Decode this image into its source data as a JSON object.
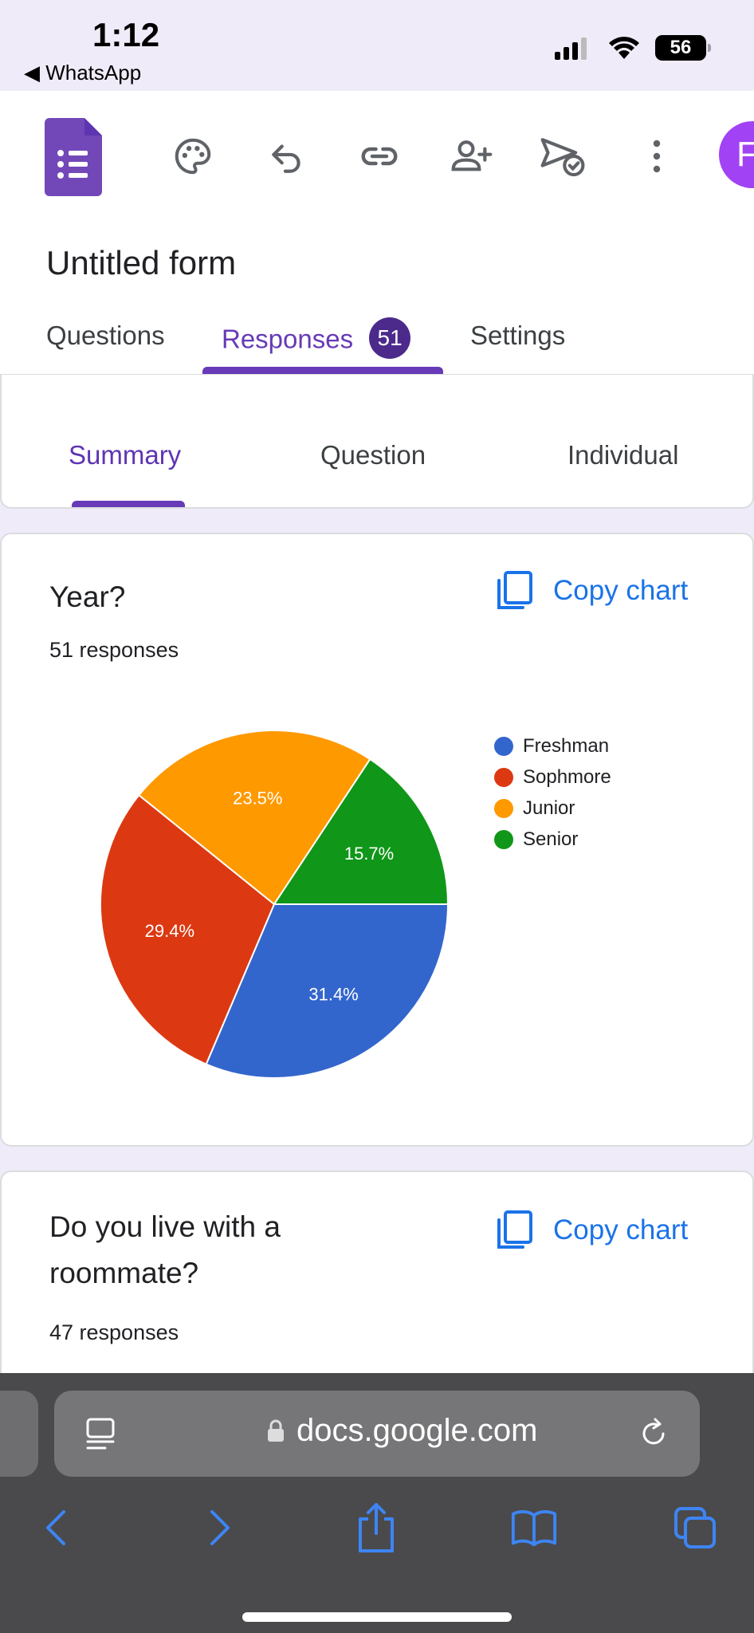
{
  "status_bar": {
    "time": "1:12",
    "back_app": "◀ WhatsApp",
    "battery": "56"
  },
  "header": {
    "app_icon": "google-forms-icon",
    "toolbar": [
      "palette-icon",
      "undo-icon",
      "link-icon",
      "add-collaborator-icon",
      "send-icon",
      "more-vert-icon"
    ],
    "avatar_initial": "F",
    "form_title": "Untitled form",
    "tabs": [
      {
        "label": "Questions"
      },
      {
        "label": "Responses",
        "badge": "51"
      },
      {
        "label": "Settings"
      }
    ]
  },
  "subtabs": [
    "Summary",
    "Question",
    "Individual"
  ],
  "questions": [
    {
      "title": "Year?",
      "responses": "51 responses",
      "copy_label": "Copy chart"
    },
    {
      "title_line1": "Do you live with a",
      "title_line2": "roommate?",
      "responses": "47 responses",
      "copy_label": "Copy chart"
    }
  ],
  "chart_data": {
    "type": "pie",
    "labels": [
      "Freshman",
      "Sophmore",
      "Junior",
      "Senior"
    ],
    "values": [
      31.4,
      29.4,
      23.5,
      15.7
    ],
    "value_labels": [
      "31.4%",
      "29.4%",
      "23.5%",
      "15.7%"
    ],
    "colors": [
      "#3366cc",
      "#dc3912",
      "#ff9900",
      "#109618"
    ],
    "legend_position": "right"
  },
  "browser": {
    "url": "docs.google.com",
    "nav_icons": [
      "back-icon",
      "forward-icon",
      "share-icon",
      "bookmarks-icon",
      "tabs-icon"
    ]
  }
}
